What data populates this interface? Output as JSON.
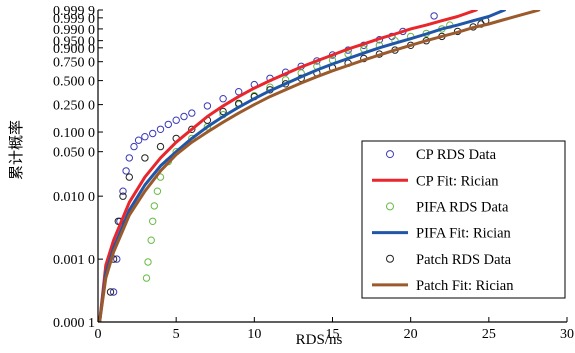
{
  "chart_data": {
    "type": "scatter",
    "xlabel": "RDS/ns",
    "ylabel": "累计概率",
    "xlim": [
      0,
      30
    ],
    "x_ticks": [
      "0",
      "5",
      "10",
      "15",
      "20",
      "25",
      "30"
    ],
    "x_tick_values": [
      0,
      5,
      10,
      15,
      20,
      25,
      30
    ],
    "y_scale": "weibull-probability",
    "y_ticks": [
      "0.999 9",
      "0.999 0",
      "0.990 0",
      "0.950 0",
      "0.900 0",
      "0.750 0",
      "0.500 0",
      "0.250 0",
      "0.100 0",
      "0.050 0",
      "0.010 0",
      "0.001 0",
      "0.000 1"
    ],
    "y_tick_values": [
      0.9999,
      0.999,
      0.99,
      0.95,
      0.9,
      0.75,
      0.5,
      0.25,
      0.1,
      0.05,
      0.01,
      0.001,
      0.0001
    ],
    "grid": false,
    "legend_position": "bottom-right",
    "series": [
      {
        "name": "CP RDS Data",
        "kind": "markers",
        "marker": "circle",
        "color": "#3a3ab8",
        "points": [
          [
            1.0,
            0.0003
          ],
          [
            1.2,
            0.001
          ],
          [
            1.4,
            0.004
          ],
          [
            1.6,
            0.012
          ],
          [
            1.8,
            0.025
          ],
          [
            2.0,
            0.04
          ],
          [
            2.3,
            0.06
          ],
          [
            2.6,
            0.075
          ],
          [
            3.0,
            0.085
          ],
          [
            3.5,
            0.095
          ],
          [
            4.0,
            0.11
          ],
          [
            4.5,
            0.13
          ],
          [
            5.0,
            0.15
          ],
          [
            5.5,
            0.17
          ],
          [
            6.0,
            0.19
          ],
          [
            7.0,
            0.24
          ],
          [
            8.0,
            0.3
          ],
          [
            9.0,
            0.37
          ],
          [
            10.0,
            0.45
          ],
          [
            11.0,
            0.53
          ],
          [
            12.0,
            0.61
          ],
          [
            13.0,
            0.69
          ],
          [
            14.0,
            0.76
          ],
          [
            15.0,
            0.83
          ],
          [
            16.0,
            0.88
          ],
          [
            17.0,
            0.92
          ],
          [
            18.0,
            0.955
          ],
          [
            18.8,
            0.97
          ],
          [
            19.5,
            0.985
          ],
          [
            21.5,
            0.9994
          ]
        ]
      },
      {
        "name": "CP Fit: Rician",
        "kind": "line",
        "color": "#e8262b",
        "points": [
          [
            0.1,
            0.0001
          ],
          [
            0.5,
            0.0008
          ],
          [
            1.0,
            0.002
          ],
          [
            2.0,
            0.008
          ],
          [
            3.0,
            0.02
          ],
          [
            4.0,
            0.04
          ],
          [
            5.0,
            0.07
          ],
          [
            6.0,
            0.11
          ],
          [
            7.0,
            0.17
          ],
          [
            8.0,
            0.24
          ],
          [
            9.0,
            0.32
          ],
          [
            10.0,
            0.41
          ],
          [
            11.0,
            0.5
          ],
          [
            12.0,
            0.59
          ],
          [
            13.0,
            0.68
          ],
          [
            14.0,
            0.76
          ],
          [
            15.0,
            0.83
          ],
          [
            16.0,
            0.89
          ],
          [
            17.0,
            0.93
          ],
          [
            18.0,
            0.96
          ],
          [
            19.0,
            0.978
          ],
          [
            20.0,
            0.99
          ],
          [
            21.0,
            0.995
          ],
          [
            22.0,
            0.998
          ],
          [
            23.0,
            0.9993
          ],
          [
            24.2,
            0.9999
          ]
        ]
      },
      {
        "name": "PIFA RDS Data",
        "kind": "markers",
        "marker": "circle",
        "color": "#66bb44",
        "points": [
          [
            3.1,
            0.0005
          ],
          [
            3.2,
            0.0009
          ],
          [
            3.4,
            0.002
          ],
          [
            3.5,
            0.004
          ],
          [
            3.6,
            0.007
          ],
          [
            3.8,
            0.012
          ],
          [
            4.0,
            0.02
          ],
          [
            4.5,
            0.035
          ],
          [
            5.0,
            0.05
          ],
          [
            6.0,
            0.08
          ],
          [
            7.0,
            0.12
          ],
          [
            8.0,
            0.18
          ],
          [
            9.0,
            0.25
          ],
          [
            10.0,
            0.33
          ],
          [
            11.0,
            0.42
          ],
          [
            12.0,
            0.51
          ],
          [
            13.0,
            0.6
          ],
          [
            14.0,
            0.69
          ],
          [
            15.0,
            0.77
          ],
          [
            16.0,
            0.84
          ],
          [
            17.0,
            0.89
          ],
          [
            18.0,
            0.92
          ],
          [
            19.0,
            0.95
          ],
          [
            20.0,
            0.97
          ],
          [
            21.0,
            0.98
          ],
          [
            22.0,
            0.99
          ],
          [
            22.5,
            0.995
          ]
        ]
      },
      {
        "name": "PIFA Fit: Rician",
        "kind": "line",
        "color": "#1f56a8",
        "points": [
          [
            0.1,
            0.0001
          ],
          [
            0.5,
            0.0006
          ],
          [
            1.0,
            0.0015
          ],
          [
            2.0,
            0.006
          ],
          [
            3.0,
            0.015
          ],
          [
            4.0,
            0.03
          ],
          [
            5.0,
            0.05
          ],
          [
            6.0,
            0.08
          ],
          [
            7.0,
            0.12
          ],
          [
            8.0,
            0.17
          ],
          [
            9.0,
            0.23
          ],
          [
            10.0,
            0.3
          ],
          [
            11.0,
            0.38
          ],
          [
            12.0,
            0.46
          ],
          [
            13.0,
            0.55
          ],
          [
            14.0,
            0.64
          ],
          [
            15.0,
            0.72
          ],
          [
            16.0,
            0.79
          ],
          [
            17.0,
            0.85
          ],
          [
            18.0,
            0.9
          ],
          [
            19.0,
            0.935
          ],
          [
            20.0,
            0.96
          ],
          [
            21.0,
            0.978
          ],
          [
            22.0,
            0.99
          ],
          [
            23.0,
            0.995
          ],
          [
            24.0,
            0.998
          ],
          [
            25.0,
            0.9993
          ],
          [
            26.0,
            0.9999
          ]
        ]
      },
      {
        "name": "Patch RDS Data",
        "kind": "markers",
        "marker": "circle",
        "color": "#222222",
        "points": [
          [
            0.8,
            0.0003
          ],
          [
            1.0,
            0.001
          ],
          [
            1.3,
            0.004
          ],
          [
            1.6,
            0.01
          ],
          [
            2.0,
            0.02
          ],
          [
            3.0,
            0.04
          ],
          [
            4.0,
            0.06
          ],
          [
            5.0,
            0.08
          ],
          [
            6.0,
            0.11
          ],
          [
            7.0,
            0.15
          ],
          [
            8.0,
            0.2
          ],
          [
            9.0,
            0.26
          ],
          [
            10.0,
            0.32
          ],
          [
            11.0,
            0.39
          ],
          [
            12.0,
            0.46
          ],
          [
            13.0,
            0.53
          ],
          [
            14.0,
            0.6
          ],
          [
            15.0,
            0.67
          ],
          [
            16.0,
            0.73
          ],
          [
            17.0,
            0.79
          ],
          [
            18.0,
            0.84
          ],
          [
            19.0,
            0.88
          ],
          [
            20.0,
            0.92
          ],
          [
            21.0,
            0.95
          ],
          [
            22.0,
            0.97
          ],
          [
            23.0,
            0.985
          ],
          [
            24.0,
            0.993
          ],
          [
            24.5,
            0.996
          ],
          [
            24.8,
            0.998
          ]
        ]
      },
      {
        "name": "Patch Fit: Rician",
        "kind": "line",
        "color": "#9b5a2c",
        "points": [
          [
            0.1,
            0.0001
          ],
          [
            0.5,
            0.0005
          ],
          [
            1.0,
            0.0013
          ],
          [
            2.0,
            0.005
          ],
          [
            3.0,
            0.012
          ],
          [
            4.0,
            0.025
          ],
          [
            5.0,
            0.045
          ],
          [
            6.0,
            0.07
          ],
          [
            7.0,
            0.1
          ],
          [
            8.0,
            0.14
          ],
          [
            9.0,
            0.19
          ],
          [
            10.0,
            0.25
          ],
          [
            11.0,
            0.32
          ],
          [
            12.0,
            0.39
          ],
          [
            13.0,
            0.47
          ],
          [
            14.0,
            0.55
          ],
          [
            15.0,
            0.63
          ],
          [
            16.0,
            0.7
          ],
          [
            17.0,
            0.77
          ],
          [
            18.0,
            0.83
          ],
          [
            19.0,
            0.88
          ],
          [
            20.0,
            0.92
          ],
          [
            21.0,
            0.95
          ],
          [
            22.0,
            0.97
          ],
          [
            23.0,
            0.983
          ],
          [
            24.0,
            0.992
          ],
          [
            25.0,
            0.996
          ],
          [
            26.0,
            0.9985
          ],
          [
            27.0,
            0.9995
          ],
          [
            28.2,
            0.9999
          ]
        ]
      }
    ]
  }
}
